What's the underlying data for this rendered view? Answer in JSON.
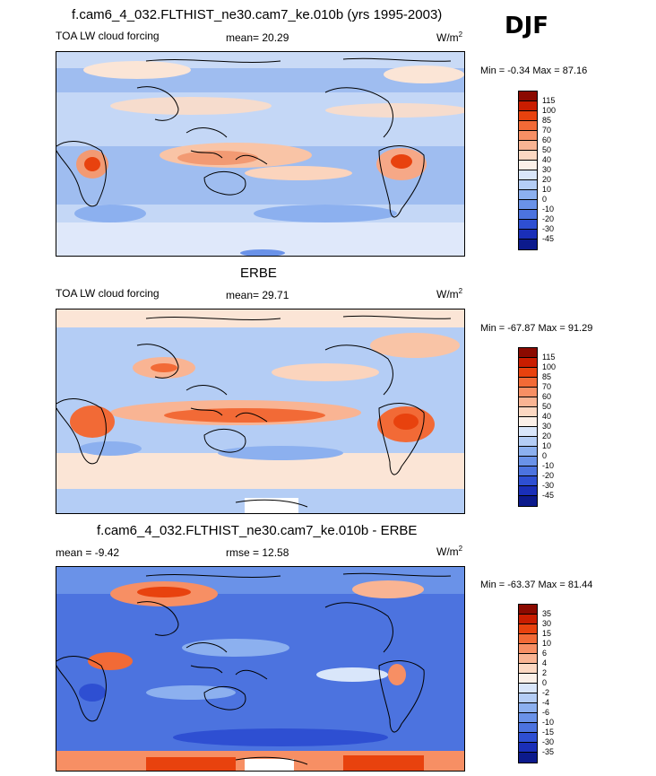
{
  "season": "DJF",
  "panels": [
    {
      "title": "f.cam6_4_032.FLTHIST_ne30.cam7_ke.010b (yrs 1995-2003)",
      "left_label": "TOA LW cloud forcing",
      "center_label": "mean=  20.29",
      "units": "W/m",
      "units_exp": "2",
      "minmax": "Min =  -0.34 Max =  87.16"
    },
    {
      "title": "ERBE",
      "left_label": "TOA LW cloud forcing",
      "center_label": "mean=  29.71",
      "units": "W/m",
      "units_exp": "2",
      "minmax": "Min = -67.87 Max =  91.29"
    },
    {
      "title": "f.cam6_4_032.FLTHIST_ne30.cam7_ke.010b - ERBE",
      "left_label": "mean =  -9.42",
      "center_label": "rmse =  12.58",
      "units": "W/m",
      "units_exp": "2",
      "minmax": "Min = -63.37 Max =  81.44"
    }
  ],
  "colorbars": {
    "field_levels": [
      "115",
      "100",
      "85",
      "70",
      "60",
      "50",
      "40",
      "30",
      "20",
      "10",
      "0",
      "-10",
      "-20",
      "-30",
      "-45"
    ],
    "diff_levels": [
      "35",
      "30",
      "15",
      "10",
      "6",
      "4",
      "2",
      "0",
      "-2",
      "-4",
      "-6",
      "-10",
      "-15",
      "-30",
      "-35"
    ],
    "colors": [
      "#8b0a00",
      "#c91d00",
      "#e8420e",
      "#f26a36",
      "#f78f64",
      "#f9b493",
      "#fcd8c2",
      "#fbf0e8",
      "#d9e6fa",
      "#b4cdf5",
      "#8cb0ef",
      "#6a92e8",
      "#4c73df",
      "#2e4fd2",
      "#1a2fb8",
      "#0c1a8c"
    ]
  }
}
